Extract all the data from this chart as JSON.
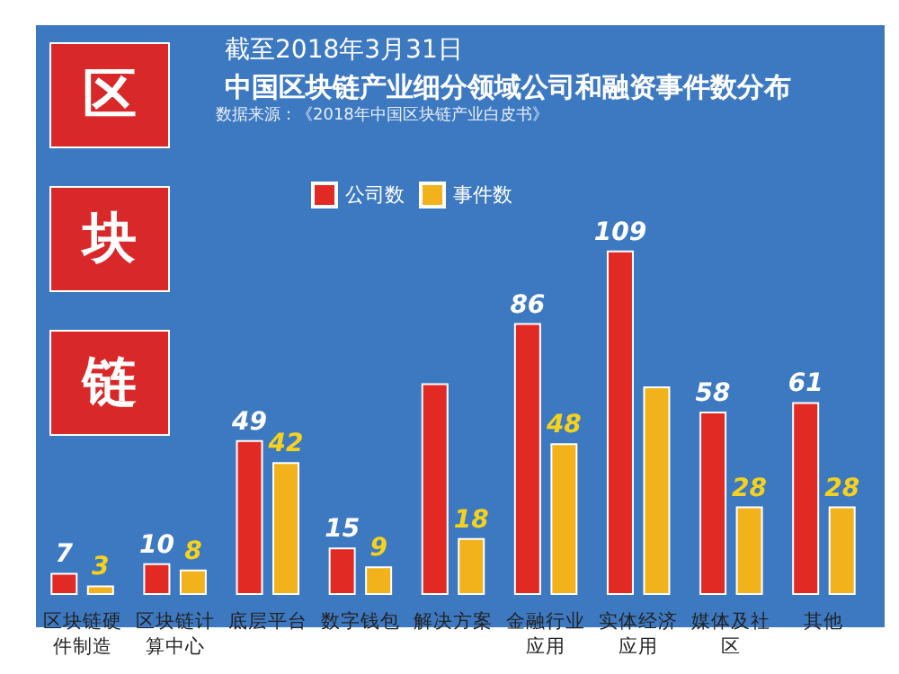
{
  "chart_data": {
    "type": "bar",
    "subtitle": "截至2018年3月31日",
    "title": "中国区块链产业细分领域公司和融资事件数分布",
    "annotations": [
      "数据来源：《2018年中国区块链产业白皮书》",
      "区",
      "块",
      "链"
    ],
    "categories": [
      "区块链硬件制造",
      "区块链计算中心",
      "底层平台",
      "数字钱包",
      "解决方案",
      "金融行业应用",
      "实体经济应用",
      "媒体及社区",
      "其他"
    ],
    "series": [
      {
        "name": "公司数",
        "color": "#e22a25",
        "values": [
          7,
          10,
          49,
          15,
          67,
          86,
          109,
          58,
          61
        ],
        "value_labels": [
          "7",
          "10",
          "49",
          "15",
          null,
          "86",
          "109",
          "58",
          "61"
        ]
      },
      {
        "name": "事件数",
        "color": "#f2b21c",
        "values": [
          3,
          8,
          42,
          9,
          18,
          48,
          66,
          28,
          28
        ],
        "value_labels": [
          "3",
          "8",
          "42",
          "9",
          "18",
          "48",
          null,
          "28",
          "28"
        ]
      }
    ],
    "legend": "top left",
    "grid": false
  }
}
